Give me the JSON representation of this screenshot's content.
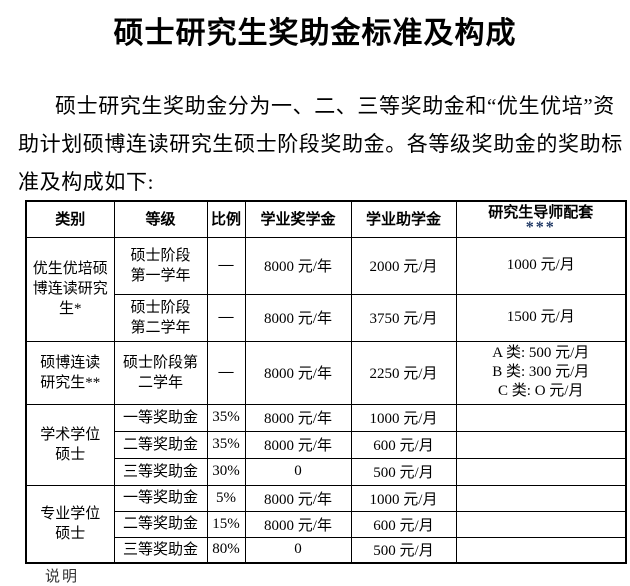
{
  "page": {
    "title": "硕士研究生奖助金标准及构成",
    "intro_lines": [
      "硕士研究生奖助金分为一、二、三等奖助金和“优生优培”资",
      "助计划硕博连读研究生硕士阶段奖助金。各等级奖助金的奖助标",
      "准及构成如下:"
    ],
    "footer_clipped": "说明"
  },
  "table": {
    "headers": [
      "类别",
      "等级",
      "比例",
      "学业奖学金",
      "学业助学金",
      "研究生导师配套"
    ],
    "header_stars": "***",
    "groups": [
      {
        "category": "优生优培硕博连读研究生*",
        "category_lines": [
          "优生优培硕",
          "博连读研究",
          "生*"
        ],
        "rows": [
          {
            "level_lines": [
              "硕士阶段",
              "第一学年"
            ],
            "ratio": "—",
            "scholarship": "8000 元/年",
            "grant": "2000 元/月",
            "supervisor_lines": [
              "1000 元/月"
            ]
          },
          {
            "level_lines": [
              "硕士阶段",
              "第二学年"
            ],
            "ratio": "—",
            "scholarship": "8000 元/年",
            "grant": "3750 元/月",
            "supervisor_lines": [
              "1500 元/月"
            ]
          }
        ]
      },
      {
        "category": "硕博连读研究生**",
        "category_lines": [
          "硕博连读",
          "研究生**"
        ],
        "rows": [
          {
            "level_lines": [
              "硕士阶段第",
              "二学年"
            ],
            "ratio": "—",
            "scholarship": "8000 元/年",
            "grant": "2250 元/月",
            "supervisor_lines": [
              "A 类: 500 元/月",
              "B 类: 300 元/月",
              "C 类: O 元/月"
            ]
          }
        ]
      },
      {
        "category": "学术学位硕士",
        "category_lines": [
          "学术学位",
          "硕士"
        ],
        "rows": [
          {
            "level_lines": [
              "一等奖助金"
            ],
            "ratio": "35%",
            "scholarship": "8000 元/年",
            "grant": "1000 元/月",
            "supervisor_lines": []
          },
          {
            "level_lines": [
              "二等奖助金"
            ],
            "ratio": "35%",
            "scholarship": "8000 元/年",
            "grant": "600 元/月",
            "supervisor_lines": []
          },
          {
            "level_lines": [
              "三等奖助金"
            ],
            "ratio": "30%",
            "scholarship": "0",
            "grant": "500 元/月",
            "supervisor_lines": []
          }
        ]
      },
      {
        "category": "专业学位硕士",
        "category_lines": [
          "专业学位",
          "硕士"
        ],
        "rows": [
          {
            "level_lines": [
              "一等奖助金"
            ],
            "ratio": "5%",
            "scholarship": "8000 元/年",
            "grant": "1000 元/月",
            "supervisor_lines": []
          },
          {
            "level_lines": [
              "二等奖助金"
            ],
            "ratio": "15%",
            "scholarship": "8000 元/年",
            "grant": "600 元/月",
            "supervisor_lines": []
          },
          {
            "level_lines": [
              "三等奖助金"
            ],
            "ratio": "80%",
            "scholarship": "0",
            "grant": "500 元/月",
            "supervisor_lines": []
          }
        ]
      }
    ]
  },
  "colors": {
    "star_accent": "#1f3864",
    "text": "#000000",
    "background": "#ffffff"
  }
}
